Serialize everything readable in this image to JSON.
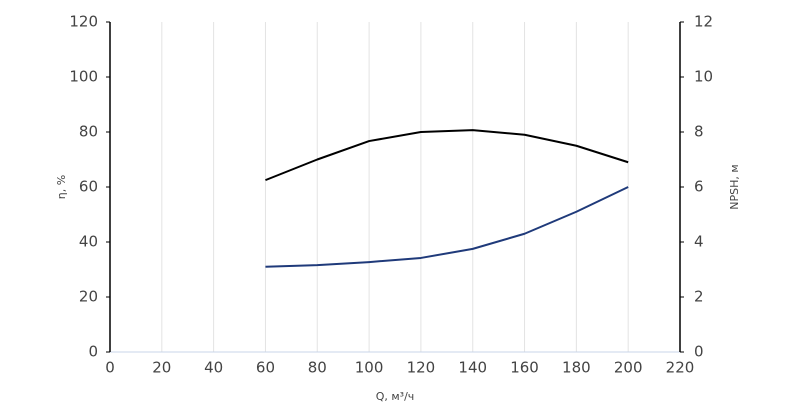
{
  "chart_data": {
    "type": "line",
    "x_label": "Q, м³/ч",
    "y_label": "η, %",
    "y2_label": "NPSH, м",
    "x": [
      60,
      80,
      100,
      120,
      140,
      160,
      180,
      200
    ],
    "series": [
      {
        "color": "#000000",
        "axis": "y",
        "values": [
          62.5,
          70,
          76.7,
          80,
          80.7,
          79,
          75,
          69
        ]
      },
      {
        "color": "#1f3a7a",
        "axis": "y2",
        "values": [
          3.1,
          3.16,
          3.27,
          3.42,
          3.75,
          4.3,
          5.1,
          6.0
        ]
      }
    ],
    "xlim": [
      0,
      220
    ],
    "xticks": [
      0,
      20,
      40,
      60,
      80,
      100,
      120,
      140,
      160,
      180,
      200,
      220
    ],
    "ylim": [
      0,
      120
    ],
    "yticks": [
      0,
      20,
      40,
      60,
      80,
      100,
      120
    ],
    "y2lim": [
      0,
      12
    ],
    "y2ticks": [
      0,
      2,
      4,
      6,
      8,
      10,
      12
    ],
    "grid": "x"
  }
}
